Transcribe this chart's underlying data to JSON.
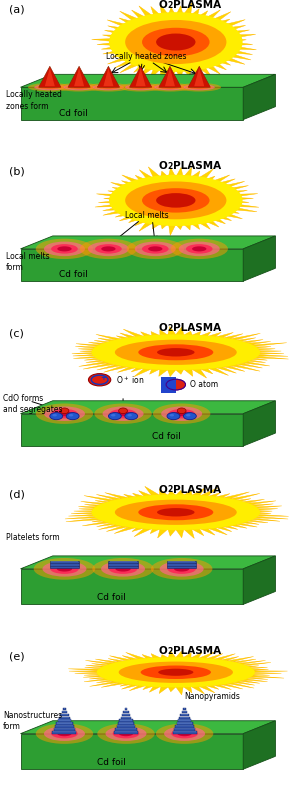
{
  "panels": [
    "a",
    "b",
    "c",
    "d",
    "e"
  ],
  "panel_labels": [
    "(a)",
    "(b)",
    "(c)",
    "(d)",
    "(e)"
  ],
  "plasma_label_o2": "O",
  "plasma_label_2": "2",
  "plasma_label_plasma": "PLASMA",
  "foil_label": "Cd foil",
  "foil_top_color": "#3cb840",
  "foil_front_color": "#2d9e32",
  "foil_right_color": "#1e7022",
  "foil_edge_color": "#155018",
  "panel_a_label1": "Locally heated\nzones form",
  "panel_a_label2": "Locally heated zones",
  "panel_b_label1": "Local melts\nform",
  "panel_b_label2": "Local melts",
  "panel_c_label1": "CdO forms\nand segregates",
  "panel_d_label1": "Platelets form",
  "panel_e_label1": "Nanostructures\nform",
  "panel_e_label2": "Nanopyramids"
}
